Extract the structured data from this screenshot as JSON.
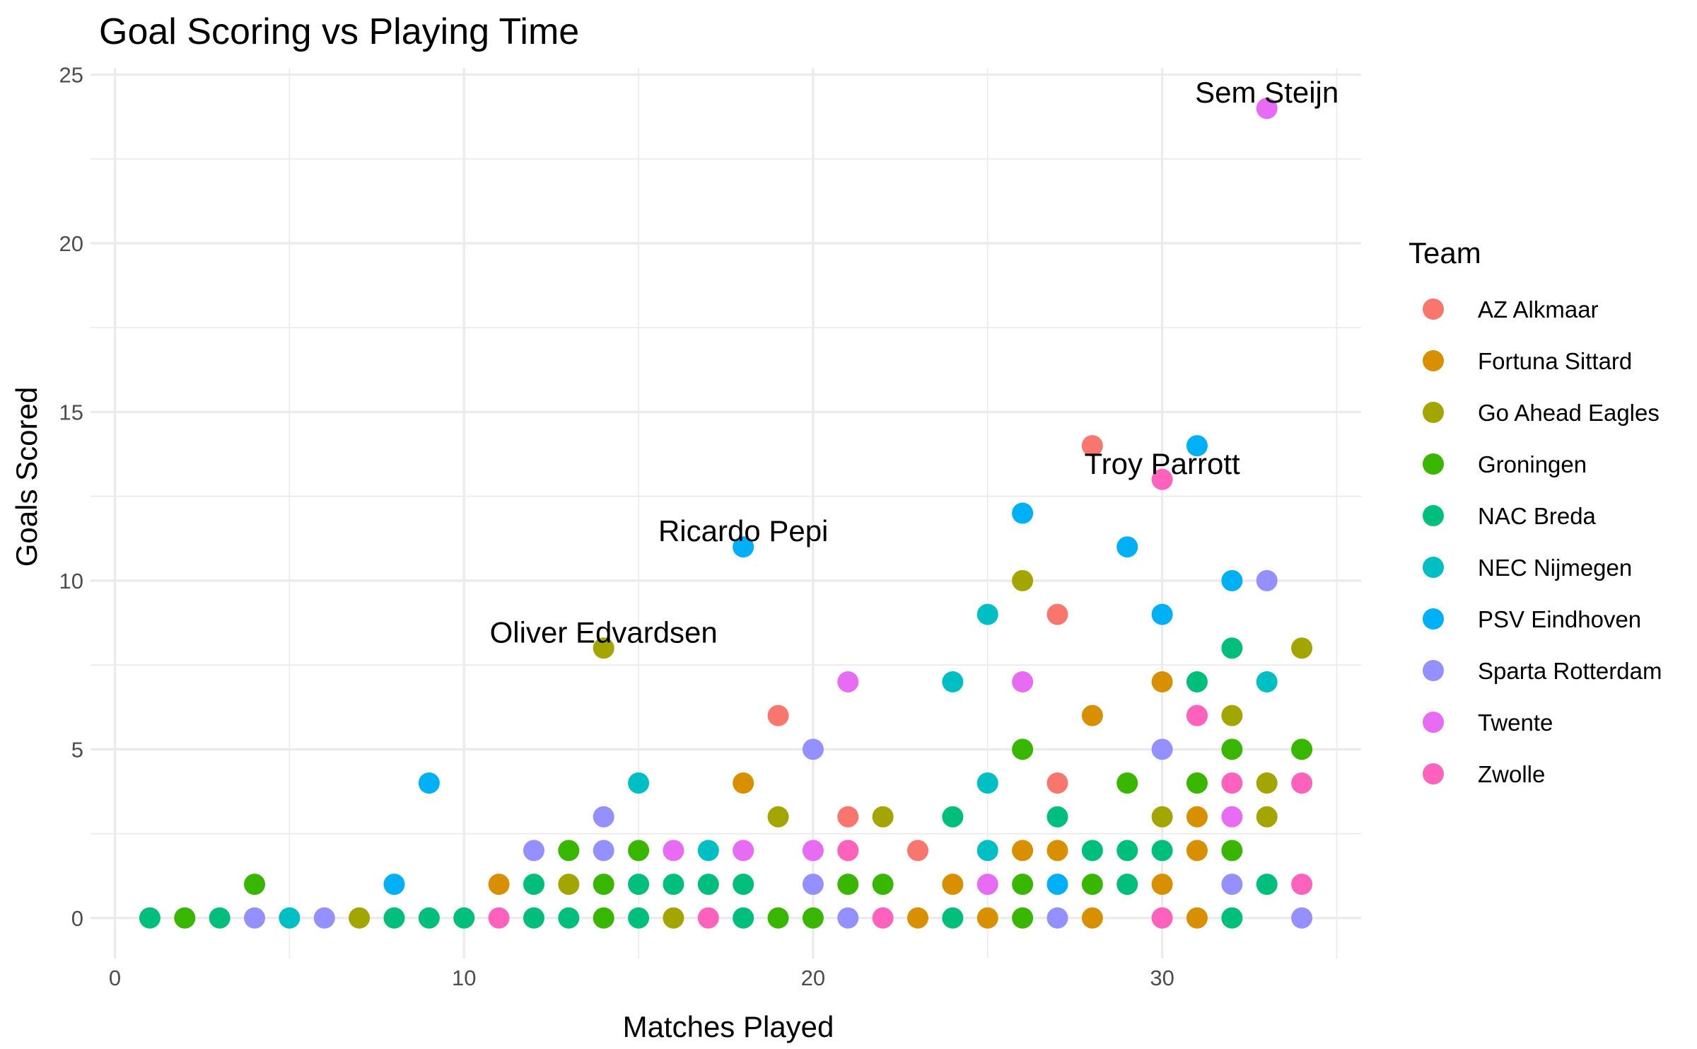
{
  "chart_data": {
    "type": "scatter",
    "title": "Goal Scoring vs Playing Time",
    "xlabel": "Matches Played",
    "ylabel": "Goals Scored",
    "xlim": [
      -0.7,
      35.7
    ],
    "ylim": [
      -1.2,
      25.2
    ],
    "x_ticks": [
      0,
      10,
      20,
      30
    ],
    "y_ticks": [
      0,
      5,
      10,
      15,
      20,
      25
    ],
    "grid": true,
    "legend": {
      "title": "Team",
      "placement": "right"
    },
    "series": [
      {
        "name": "AZ Alkmaar",
        "color": "#F8766D",
        "points": [
          [
            19,
            6
          ],
          [
            21,
            3
          ],
          [
            21,
            2
          ],
          [
            23,
            2
          ],
          [
            27,
            9
          ],
          [
            27,
            4
          ],
          [
            28,
            14
          ]
        ]
      },
      {
        "name": "Fortuna Sittard",
        "color": "#D89000",
        "points": [
          [
            11,
            1
          ],
          [
            18,
            4
          ],
          [
            23,
            0
          ],
          [
            24,
            1
          ],
          [
            25,
            0
          ],
          [
            26,
            2
          ],
          [
            27,
            2
          ],
          [
            28,
            6
          ],
          [
            28,
            0
          ],
          [
            30,
            7
          ],
          [
            30,
            1
          ],
          [
            31,
            3
          ],
          [
            31,
            2
          ],
          [
            31,
            0
          ]
        ]
      },
      {
        "name": "Go Ahead Eagles",
        "color": "#A3A500",
        "points": [
          [
            7,
            0
          ],
          [
            13,
            1
          ],
          [
            14,
            8
          ],
          [
            16,
            0
          ],
          [
            19,
            3
          ],
          [
            22,
            3
          ],
          [
            26,
            10
          ],
          [
            30,
            3
          ],
          [
            32,
            6
          ],
          [
            33,
            4
          ],
          [
            33,
            3
          ],
          [
            34,
            8
          ]
        ]
      },
      {
        "name": "Groningen",
        "color": "#39B600",
        "points": [
          [
            2,
            0
          ],
          [
            4,
            1
          ],
          [
            13,
            2
          ],
          [
            14,
            1
          ],
          [
            14,
            0
          ],
          [
            15,
            2
          ],
          [
            19,
            0
          ],
          [
            20,
            0
          ],
          [
            21,
            1
          ],
          [
            22,
            1
          ],
          [
            26,
            5
          ],
          [
            26,
            1
          ],
          [
            26,
            0
          ],
          [
            28,
            1
          ],
          [
            29,
            4
          ],
          [
            31,
            4
          ],
          [
            32,
            5
          ],
          [
            32,
            2
          ],
          [
            34,
            5
          ]
        ]
      },
      {
        "name": "NAC Breda",
        "color": "#00BF7D",
        "points": [
          [
            1,
            0
          ],
          [
            3,
            0
          ],
          [
            8,
            0
          ],
          [
            9,
            0
          ],
          [
            10,
            0
          ],
          [
            12,
            1
          ],
          [
            12,
            0
          ],
          [
            13,
            0
          ],
          [
            15,
            1
          ],
          [
            15,
            0
          ],
          [
            16,
            1
          ],
          [
            17,
            1
          ],
          [
            18,
            1
          ],
          [
            18,
            0
          ],
          [
            24,
            3
          ],
          [
            24,
            0
          ],
          [
            27,
            3
          ],
          [
            28,
            2
          ],
          [
            29,
            2
          ],
          [
            29,
            1
          ],
          [
            30,
            2
          ],
          [
            31,
            7
          ],
          [
            32,
            8
          ],
          [
            32,
            0
          ],
          [
            33,
            1
          ]
        ]
      },
      {
        "name": "NEC Nijmegen",
        "color": "#00BFC4",
        "points": [
          [
            5,
            0
          ],
          [
            15,
            4
          ],
          [
            17,
            2
          ],
          [
            24,
            7
          ],
          [
            25,
            9
          ],
          [
            25,
            4
          ],
          [
            25,
            2
          ],
          [
            33,
            7
          ]
        ]
      },
      {
        "name": "PSV Eindhoven",
        "color": "#00B0F6",
        "points": [
          [
            8,
            1
          ],
          [
            9,
            4
          ],
          [
            18,
            11
          ],
          [
            26,
            12
          ],
          [
            27,
            1
          ],
          [
            29,
            11
          ],
          [
            30,
            9
          ],
          [
            31,
            14
          ],
          [
            32,
            10
          ]
        ]
      },
      {
        "name": "Sparta Rotterdam",
        "color": "#9590FF",
        "points": [
          [
            4,
            0
          ],
          [
            6,
            0
          ],
          [
            12,
            2
          ],
          [
            14,
            3
          ],
          [
            14,
            2
          ],
          [
            20,
            5
          ],
          [
            20,
            1
          ],
          [
            21,
            0
          ],
          [
            27,
            0
          ],
          [
            30,
            5
          ],
          [
            32,
            1
          ],
          [
            33,
            10
          ],
          [
            34,
            0
          ]
        ]
      },
      {
        "name": "Twente",
        "color": "#E76BF3",
        "points": [
          [
            16,
            2
          ],
          [
            18,
            2
          ],
          [
            20,
            2
          ],
          [
            21,
            7
          ],
          [
            25,
            1
          ],
          [
            26,
            7
          ],
          [
            31,
            6
          ],
          [
            32,
            3
          ],
          [
            33,
            24
          ]
        ]
      },
      {
        "name": "Zwolle",
        "color": "#FF62BC",
        "points": [
          [
            11,
            0
          ],
          [
            17,
            0
          ],
          [
            21,
            2
          ],
          [
            22,
            0
          ],
          [
            30,
            13
          ],
          [
            30,
            0
          ],
          [
            31,
            6
          ],
          [
            32,
            4
          ],
          [
            34,
            4
          ],
          [
            34,
            1
          ]
        ]
      }
    ],
    "annotations": [
      {
        "text": "Sem Steijn",
        "x": 33,
        "y": 24
      },
      {
        "text": "Troy Parrott",
        "x": 30,
        "y": 13
      },
      {
        "text": "Ricardo Pepi",
        "x": 18,
        "y": 11
      },
      {
        "text": "Oliver Edvardsen",
        "x": 14,
        "y": 8
      }
    ]
  }
}
